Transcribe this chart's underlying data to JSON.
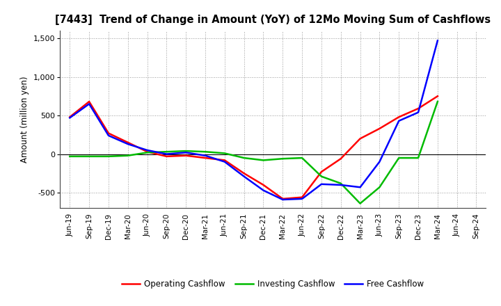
{
  "title": "[7443]  Trend of Change in Amount (YoY) of 12Mo Moving Sum of Cashflows",
  "ylabel": "Amount (million yen)",
  "x_labels": [
    "Jun-19",
    "Sep-19",
    "Dec-19",
    "Mar-20",
    "Jun-20",
    "Sep-20",
    "Dec-20",
    "Mar-21",
    "Jun-21",
    "Sep-21",
    "Dec-21",
    "Mar-22",
    "Jun-22",
    "Sep-22",
    "Dec-22",
    "Mar-23",
    "Jun-23",
    "Sep-23",
    "Dec-23",
    "Mar-24",
    "Jun-24",
    "Sep-24"
  ],
  "operating": [
    480,
    680,
    270,
    150,
    30,
    -30,
    -20,
    -50,
    -80,
    -250,
    -400,
    -580,
    -560,
    -230,
    -60,
    200,
    330,
    480,
    590,
    750,
    null,
    null
  ],
  "investing": [
    -30,
    -30,
    -30,
    -20,
    20,
    30,
    40,
    30,
    10,
    -50,
    -80,
    -60,
    -50,
    -290,
    -380,
    -640,
    -430,
    -50,
    -50,
    680,
    null,
    null
  ],
  "free": [
    470,
    650,
    240,
    130,
    50,
    0,
    20,
    -20,
    -100,
    -290,
    -470,
    -590,
    -580,
    -390,
    -400,
    -430,
    -100,
    430,
    540,
    1470,
    null,
    null
  ],
  "ylim": [
    -700,
    1600
  ],
  "yticks": [
    -500,
    0,
    500,
    1000,
    1500
  ],
  "operating_color": "#ff0000",
  "investing_color": "#00bb00",
  "free_color": "#0000ff",
  "bg_color": "#ffffff",
  "plot_bg_color": "#ffffff",
  "grid_color": "#999999",
  "title_color": "#000000",
  "linewidth": 1.8,
  "legend_labels": [
    "Operating Cashflow",
    "Investing Cashflow",
    "Free Cashflow"
  ]
}
